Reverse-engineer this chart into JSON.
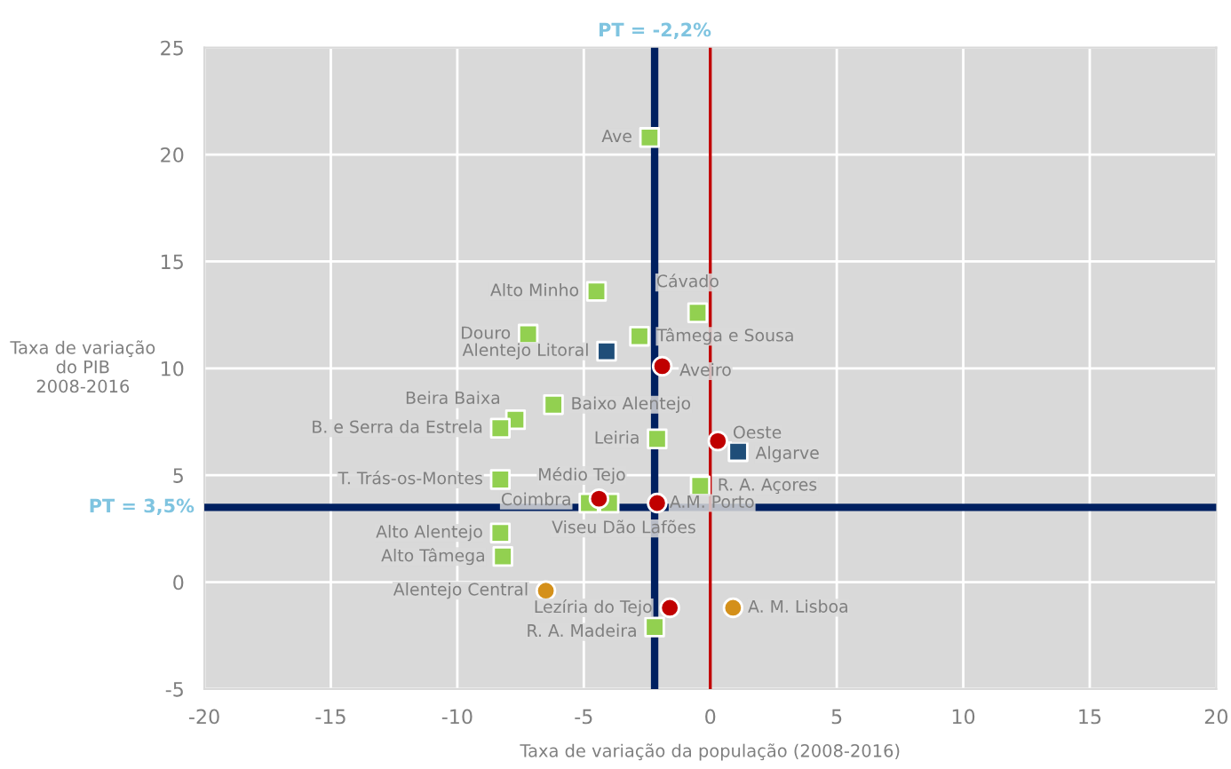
{
  "chart_data": {
    "type": "scatter",
    "xlabel": "Taxa de variação da população (2008-2016)",
    "ylabel": "Taxa de variação\ndo PIB\n2008-2016",
    "xlim": [
      -20,
      20
    ],
    "xticks": [
      -20,
      -15,
      -10,
      -5,
      0,
      5,
      10,
      15,
      20
    ],
    "ylim": [
      -5,
      25
    ],
    "yticks": [
      -5,
      0,
      5,
      10,
      15,
      20,
      25
    ],
    "grid": true,
    "legend": false,
    "series": [
      {
        "color": "#92d050",
        "marker": "square",
        "x": [
          -2.4,
          -4.5,
          -0.5,
          -7.2,
          -2.8,
          -7.7,
          -8.3,
          -6.2,
          -2.1,
          -8.3,
          -0.4,
          -4.8,
          -4.0,
          -8.3,
          -8.2,
          -2.2
        ],
        "values": [
          20.8,
          13.6,
          12.6,
          11.6,
          11.5,
          7.6,
          7.2,
          8.3,
          6.7,
          4.8,
          4.5,
          3.7,
          3.7,
          2.3,
          1.2,
          -2.1
        ],
        "value_labels": [
          "Ave",
          "Alto Minho",
          "Cávado",
          "Douro",
          "Tâmega e Sousa",
          "Beira Baixa",
          "B. e Serra da Estrela",
          "Baixo Alentejo",
          "Leiria",
          "T. Trás-os-Montes",
          "R. A. Açores",
          "Coimbra",
          "Viseu Dão Lafões",
          "Alto Alentejo",
          "Alto Tâmega",
          "R. A. Madeira"
        ]
      },
      {
        "color": "#1f4e79",
        "marker": "square",
        "x": [
          -4.1,
          1.1
        ],
        "values": [
          10.8,
          6.1
        ],
        "value_labels": [
          "Alentejo Litoral",
          "Algarve"
        ]
      },
      {
        "color": "#c00000",
        "marker": "circle",
        "x": [
          -1.9,
          0.3,
          -4.4,
          -2.1,
          -1.6
        ],
        "values": [
          10.1,
          6.6,
          3.9,
          3.7,
          -1.2
        ],
        "value_labels": [
          "Aveiro",
          "Oeste",
          "Médio Tejo",
          "A.M. Porto",
          "Lezíria do Tejo"
        ]
      },
      {
        "color": "#d4901a",
        "marker": "circle",
        "x": [
          -6.5,
          0.9
        ],
        "values": [
          -0.4,
          -1.2
        ],
        "value_labels": [
          "Alentejo Central",
          "A. M. Lisboa"
        ]
      }
    ],
    "ref_lines": [
      {
        "axis": "y",
        "value": 3.5,
        "label": "PT = 3,5%",
        "color": "#002060"
      },
      {
        "axis": "x",
        "value": -2.2,
        "label": "PT = -2,2%",
        "color": "#002060"
      },
      {
        "axis": "x",
        "value": 0,
        "color": "#c00000"
      }
    ]
  }
}
